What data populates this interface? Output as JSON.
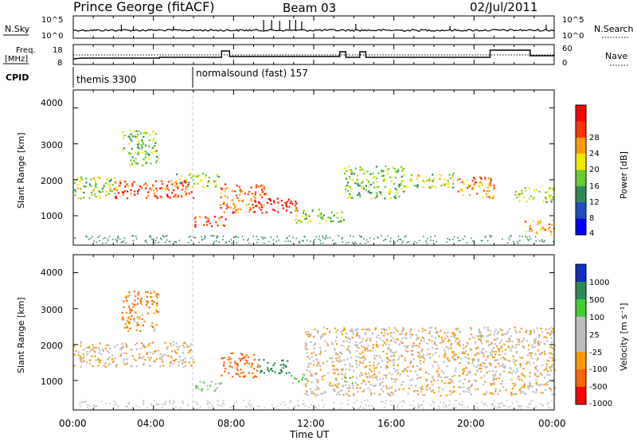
{
  "header": {
    "title": "Prince George (fitACF)",
    "beam": "Beam 03",
    "date": "02/Jul/2011"
  },
  "sky_panel": {
    "left_label": "N.Sky",
    "right_label": "N.Search",
    "left_ticks": [
      "10^5",
      "10^0"
    ],
    "right_ticks": [
      "10^5",
      "10^0"
    ]
  },
  "freq_panel": {
    "left_label_1": "Freq.",
    "left_label_2": "[MHz]",
    "left_ticks": [
      "18",
      "8"
    ],
    "right_label": "Nave",
    "right_ticks": [
      "60",
      "0"
    ]
  },
  "cpid": {
    "label": "CPID",
    "mode1": "themis 3300",
    "mode2": "normalsound (fast) 157"
  },
  "power_panel": {
    "ylabel": "Slant Range [km]",
    "yticks": [
      "4000",
      "3000",
      "2000",
      "1000"
    ],
    "colorbar_label": "Power [dB]",
    "colorbar_ticks": [
      "28",
      "24",
      "20",
      "16",
      "12",
      "8",
      "4"
    ],
    "colorbar_colors": [
      "#0000ff",
      "#1f4fbf",
      "#2e8b57",
      "#66cc33",
      "#f2e600",
      "#ff9900",
      "#ff3300",
      "#ff0000"
    ]
  },
  "velocity_panel": {
    "ylabel": "Slant Range [km]",
    "yticks": [
      "4000",
      "3000",
      "2000",
      "1000"
    ],
    "colorbar_label": "Velocity [m s⁻¹]",
    "colorbar_ticks": [
      "1000",
      "500",
      "100",
      "25",
      "-25",
      "-100",
      "-500",
      "-1000"
    ],
    "colorbar_colors": [
      "#1030c0",
      "#2e8b57",
      "#44cc33",
      "#bebebe",
      "#bebebe",
      "#ff9900",
      "#ff6600",
      "#ff0000"
    ]
  },
  "xaxis": {
    "label": "Time UT",
    "ticks": [
      "00:00",
      "04:00",
      "08:00",
      "12:00",
      "16:00",
      "20:00",
      "00:00"
    ]
  },
  "chart_data": {
    "type": "heatmap",
    "x_range_hours": [
      0,
      24
    ],
    "y_range_km": [
      180,
      4500
    ],
    "mode_change_hour": 6.0,
    "power_scatter_regions": [
      {
        "t0": 0.0,
        "t1": 2.2,
        "r0": 1500,
        "r1": 2100,
        "db": 14
      },
      {
        "t0": 2.0,
        "t1": 6.0,
        "r0": 1500,
        "r1": 2000,
        "db": 24
      },
      {
        "t0": 2.4,
        "t1": 4.2,
        "r0": 2400,
        "r1": 3400,
        "db": 12
      },
      {
        "t0": 5.0,
        "t1": 7.3,
        "r0": 1800,
        "r1": 2200,
        "db": 14
      },
      {
        "t0": 6.0,
        "t1": 7.6,
        "r0": 700,
        "r1": 1000,
        "db": 26
      },
      {
        "t0": 7.3,
        "t1": 9.6,
        "r0": 1100,
        "r1": 1900,
        "db": 22
      },
      {
        "t0": 9.0,
        "t1": 11.2,
        "r0": 1100,
        "r1": 1500,
        "db": 28
      },
      {
        "t0": 11.0,
        "t1": 13.5,
        "r0": 800,
        "r1": 1200,
        "db": 12
      },
      {
        "t0": 13.5,
        "t1": 16.5,
        "r0": 1500,
        "r1": 2400,
        "db": 12
      },
      {
        "t0": 16.5,
        "t1": 19.0,
        "r0": 1800,
        "r1": 2200,
        "db": 14
      },
      {
        "t0": 19.0,
        "t1": 21.0,
        "r0": 1500,
        "r1": 2100,
        "db": 20
      },
      {
        "t0": 22.0,
        "t1": 24.0,
        "r0": 1400,
        "r1": 1800,
        "db": 14
      },
      {
        "t0": 22.5,
        "t1": 24.0,
        "r0": 500,
        "r1": 900,
        "db": 20
      }
    ],
    "velocity_scatter_regions": [
      {
        "t0": 0.0,
        "t1": 6.0,
        "r0": 1400,
        "r1": 2100,
        "v": 0
      },
      {
        "t0": 2.4,
        "t1": 4.2,
        "r0": 2400,
        "r1": 3500,
        "v": -100
      },
      {
        "t0": 6.0,
        "t1": 7.4,
        "r0": 700,
        "r1": 1000,
        "v": 100
      },
      {
        "t0": 7.3,
        "t1": 9.2,
        "r0": 1100,
        "r1": 1800,
        "v": -300
      },
      {
        "t0": 9.2,
        "t1": 10.8,
        "r0": 1200,
        "r1": 1600,
        "v": 600
      },
      {
        "t0": 10.8,
        "t1": 11.6,
        "r0": 900,
        "r1": 1200,
        "v": 100
      },
      {
        "t0": 11.5,
        "t1": 24.0,
        "r0": 600,
        "r1": 2500,
        "v": 0
      },
      {
        "t0": 13.5,
        "t1": 14.0,
        "r0": 800,
        "r1": 1100,
        "v": 100
      }
    ]
  }
}
